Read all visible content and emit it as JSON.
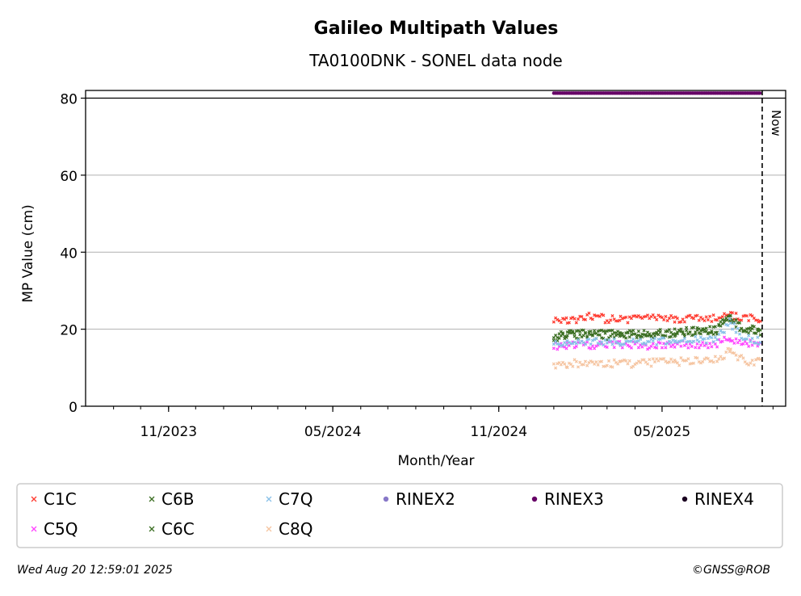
{
  "chart_data": {
    "type": "scatter",
    "title": "Galileo Multipath Values",
    "subtitle": "TA0100DNK - SONEL data node",
    "xlabel": "Month/Year",
    "ylabel": "MP Value (cm)",
    "ylim": [
      0,
      82
    ],
    "xlim": [
      "2023-08-01",
      "2025-09-15"
    ],
    "y_ticks": [
      0,
      20,
      40,
      60,
      80
    ],
    "x_ticks": [
      {
        "date": "2023-11-01",
        "label": "11/2023"
      },
      {
        "date": "2024-05-01",
        "label": "05/2024"
      },
      {
        "date": "2024-11-01",
        "label": "11/2024"
      },
      {
        "date": "2025-05-01",
        "label": "05/2025"
      }
    ],
    "grid": "horizontal",
    "now_line": {
      "date": "2025-08-20",
      "label": "Now"
    },
    "series": [
      {
        "name": "C1C",
        "color": "#ff3b30",
        "marker": "x",
        "points": [
          [
            "2025-01-01",
            22.5
          ],
          [
            "2025-01-15",
            22.0
          ],
          [
            "2025-02-01",
            22.8
          ],
          [
            "2025-02-15",
            23.5
          ],
          [
            "2025-03-01",
            22.5
          ],
          [
            "2025-03-15",
            22.8
          ],
          [
            "2025-04-01",
            22.5
          ],
          [
            "2025-04-15",
            23.5
          ],
          [
            "2025-05-01",
            23.0
          ],
          [
            "2025-05-15",
            22.5
          ],
          [
            "2025-06-01",
            22.8
          ],
          [
            "2025-06-15",
            22.5
          ],
          [
            "2025-07-01",
            23.0
          ],
          [
            "2025-07-15",
            23.5
          ],
          [
            "2025-08-01",
            23.0
          ],
          [
            "2025-08-15",
            22.5
          ]
        ]
      },
      {
        "name": "C5Q",
        "color": "#ff44ff",
        "marker": "x",
        "points": [
          [
            "2025-01-01",
            15.5
          ],
          [
            "2025-01-15",
            15.8
          ],
          [
            "2025-02-01",
            16.0
          ],
          [
            "2025-02-15",
            15.8
          ],
          [
            "2025-03-01",
            16.0
          ],
          [
            "2025-03-15",
            15.8
          ],
          [
            "2025-04-01",
            16.0
          ],
          [
            "2025-04-15",
            15.8
          ],
          [
            "2025-05-01",
            16.0
          ],
          [
            "2025-05-15",
            15.8
          ],
          [
            "2025-06-01",
            16.0
          ],
          [
            "2025-06-15",
            16.0
          ],
          [
            "2025-07-01",
            16.2
          ],
          [
            "2025-07-15",
            17.5
          ],
          [
            "2025-08-01",
            16.5
          ],
          [
            "2025-08-15",
            16.0
          ]
        ]
      },
      {
        "name": "C6B",
        "color": "#3b6e22",
        "marker": "x",
        "points": [
          [
            "2025-01-01",
            18.0
          ],
          [
            "2025-01-15",
            18.8
          ],
          [
            "2025-02-01",
            19.0
          ],
          [
            "2025-02-15",
            19.2
          ],
          [
            "2025-03-01",
            18.8
          ],
          [
            "2025-03-15",
            18.6
          ],
          [
            "2025-04-01",
            18.8
          ],
          [
            "2025-04-15",
            19.0
          ],
          [
            "2025-05-01",
            19.0
          ],
          [
            "2025-05-15",
            19.2
          ],
          [
            "2025-06-01",
            19.5
          ],
          [
            "2025-06-15",
            19.8
          ],
          [
            "2025-07-01",
            20.0
          ],
          [
            "2025-07-15",
            24.0
          ],
          [
            "2025-08-01",
            20.0
          ],
          [
            "2025-08-15",
            19.8
          ]
        ]
      },
      {
        "name": "C6C",
        "color": "#3b6e22",
        "marker": "x",
        "points": [
          [
            "2025-01-01",
            17.5
          ],
          [
            "2025-01-15",
            18.2
          ],
          [
            "2025-02-01",
            18.5
          ],
          [
            "2025-02-15",
            18.3
          ],
          [
            "2025-03-01",
            18.2
          ],
          [
            "2025-03-15",
            18.0
          ],
          [
            "2025-04-01",
            18.2
          ],
          [
            "2025-04-15",
            18.4
          ],
          [
            "2025-05-01",
            18.5
          ],
          [
            "2025-05-15",
            18.6
          ],
          [
            "2025-06-01",
            19.0
          ],
          [
            "2025-06-15",
            19.2
          ],
          [
            "2025-07-01",
            19.5
          ],
          [
            "2025-07-15",
            23.0
          ],
          [
            "2025-08-01",
            19.5
          ],
          [
            "2025-08-15",
            19.2
          ]
        ]
      },
      {
        "name": "C7Q",
        "color": "#88c0e8",
        "marker": "x",
        "points": [
          [
            "2025-01-01",
            16.0
          ],
          [
            "2025-01-15",
            16.8
          ],
          [
            "2025-02-01",
            17.0
          ],
          [
            "2025-02-15",
            16.8
          ],
          [
            "2025-03-01",
            16.8
          ],
          [
            "2025-03-15",
            16.6
          ],
          [
            "2025-04-01",
            16.8
          ],
          [
            "2025-04-15",
            16.8
          ],
          [
            "2025-05-01",
            17.0
          ],
          [
            "2025-05-15",
            16.8
          ],
          [
            "2025-06-01",
            17.0
          ],
          [
            "2025-06-15",
            17.2
          ],
          [
            "2025-07-01",
            17.5
          ],
          [
            "2025-07-15",
            22.0
          ],
          [
            "2025-08-01",
            17.5
          ],
          [
            "2025-08-15",
            17.0
          ]
        ]
      },
      {
        "name": "C8Q",
        "color": "#f5c4a0",
        "marker": "x",
        "points": [
          [
            "2025-01-01",
            10.5
          ],
          [
            "2025-01-15",
            11.0
          ],
          [
            "2025-02-01",
            11.2
          ],
          [
            "2025-02-15",
            11.0
          ],
          [
            "2025-03-01",
            11.0
          ],
          [
            "2025-03-15",
            11.2
          ],
          [
            "2025-04-01",
            11.0
          ],
          [
            "2025-04-15",
            11.2
          ],
          [
            "2025-05-01",
            11.5
          ],
          [
            "2025-05-15",
            11.5
          ],
          [
            "2025-06-01",
            11.8
          ],
          [
            "2025-06-15",
            11.8
          ],
          [
            "2025-07-01",
            12.0
          ],
          [
            "2025-07-15",
            14.5
          ],
          [
            "2025-08-01",
            11.8
          ],
          [
            "2025-08-15",
            11.5
          ]
        ]
      },
      {
        "name": "RINEX2",
        "color": "#8878c8",
        "marker": "o",
        "points": []
      },
      {
        "name": "RINEX3",
        "color": "#660066",
        "marker": "o",
        "availability": {
          "from": "2025-01-01",
          "to": "2025-08-19",
          "y": 81.3
        }
      },
      {
        "name": "RINEX4",
        "color": "#1a0020",
        "marker": "o",
        "points": []
      }
    ],
    "legend": {
      "placement": "bottom",
      "columns": 6
    }
  },
  "footer": {
    "timestamp": "Wed Aug 20 12:59:01 2025",
    "credit": "©GNSS@ROB"
  }
}
